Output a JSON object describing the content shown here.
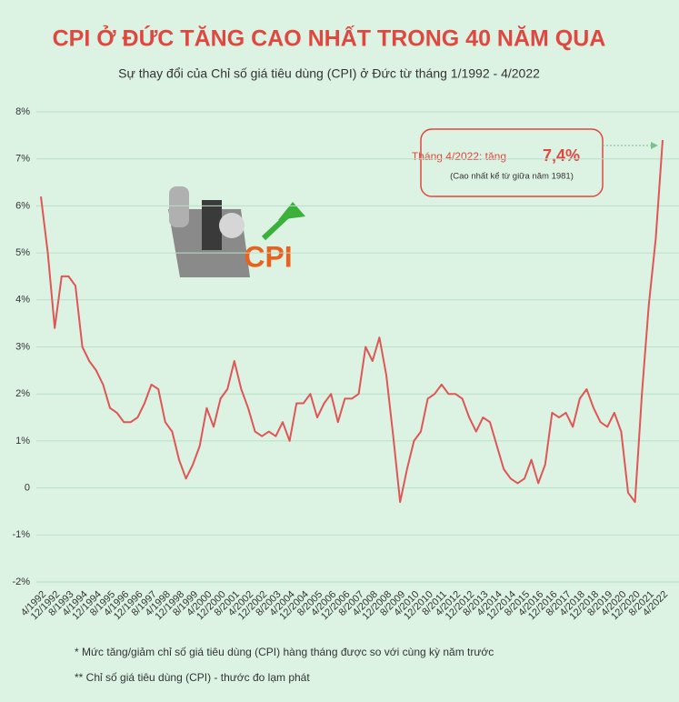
{
  "chart_data": {
    "type": "line",
    "title": "CPI Ở ĐỨC TĂNG CAO NHẤT TRONG 40 NĂM QUA",
    "subtitle": "Sự thay đổi của Chỉ số giá tiêu dùng (CPI) ở Đức từ tháng 1/1992 - 4/2022",
    "categories": [
      "4/1992",
      null,
      "12/1992",
      null,
      "8/1993",
      null,
      "4/1994",
      null,
      "12/1994",
      null,
      "8/1995",
      null,
      "4/1996",
      null,
      "12/1996",
      null,
      "8/1997",
      null,
      "4/1998",
      null,
      "12/1998",
      null,
      "8/1999",
      null,
      "4/2000",
      null,
      "12/2000",
      null,
      "8/2001",
      null,
      "4/2002",
      null,
      "12/2002",
      null,
      "8/2003",
      null,
      "4/2004",
      null,
      "12/2004",
      null,
      "8/2005",
      null,
      "4/2006",
      null,
      "12/2006",
      null,
      "8/2007",
      null,
      "4/2008",
      null,
      "12/2008",
      null,
      "8/2009",
      null,
      "4/2010",
      null,
      "12/2010",
      null,
      "8/2011",
      null,
      "4/2012",
      null,
      "12/2012",
      null,
      "8/2013",
      null,
      "4/2014",
      null,
      "12/2014",
      null,
      "8/2015",
      null,
      "4/2016",
      null,
      "12/2016",
      null,
      "8/2017",
      null,
      "4/2018",
      null,
      "12/2018",
      null,
      "8/2019",
      null,
      "4/2020",
      null,
      "12/2020",
      null,
      "8/2021",
      null,
      "4/2022"
    ],
    "series": [
      {
        "name": "CPI",
        "color": "#e05555",
        "values": [
          6.2,
          5.0,
          3.4,
          4.5,
          4.5,
          4.3,
          3.0,
          2.7,
          2.5,
          2.2,
          1.7,
          1.6,
          1.4,
          1.4,
          1.5,
          1.8,
          2.2,
          2.1,
          1.4,
          1.2,
          0.6,
          0.2,
          0.5,
          0.9,
          1.7,
          1.3,
          1.9,
          2.1,
          2.7,
          2.1,
          1.7,
          1.2,
          1.1,
          1.2,
          1.1,
          1.4,
          1.0,
          1.8,
          1.8,
          2.0,
          1.5,
          1.8,
          2.0,
          1.4,
          1.9,
          1.9,
          2.0,
          3.0,
          2.7,
          3.2,
          2.4,
          1.1,
          -0.3,
          0.4,
          1.0,
          1.2,
          1.9,
          2.0,
          2.2,
          2.0,
          2.0,
          1.9,
          1.5,
          1.2,
          1.5,
          1.4,
          0.9,
          0.4,
          0.2,
          0.1,
          0.2,
          0.6,
          0.1,
          0.5,
          1.6,
          1.5,
          1.6,
          1.3,
          1.9,
          2.1,
          1.7,
          1.4,
          1.3,
          1.6,
          1.2,
          -0.1,
          -0.3,
          2.0,
          3.9,
          5.3,
          7.4
        ]
      }
    ],
    "ylim": [
      -2,
      8
    ],
    "yticks": [
      {
        "value": -2,
        "label": "-2%"
      },
      {
        "value": -1,
        "label": "-1%"
      },
      0,
      {
        "value": 1,
        "label": "1%"
      },
      {
        "value": 2,
        "label": "2%"
      },
      {
        "value": 3,
        "label": "3%"
      },
      {
        "value": 4,
        "label": "4%"
      },
      {
        "value": 5,
        "label": "5%"
      },
      {
        "value": 6,
        "label": "6%"
      },
      {
        "value": 7,
        "label": "7%"
      },
      {
        "value": 8,
        "label": "8%"
      }
    ],
    "grid": true,
    "annotation": {
      "prefix": "Tháng 4/2022: tăng",
      "highlight": "7,4%",
      "note": "(Cao nhất kể từ giữa năm 1981)"
    },
    "icon_text": "CPI",
    "footnotes": [
      "* Mức tăng/giảm chỉ số giá tiêu dùng (CPI) hàng tháng được so với cùng kỳ năm trước",
      "** Chỉ số giá tiêu dùng (CPI) - thước đo lạm phát"
    ]
  }
}
